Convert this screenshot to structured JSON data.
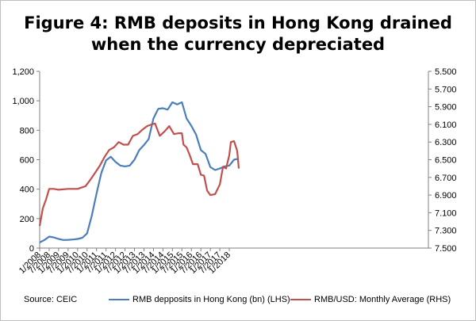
{
  "chart_data": {
    "type": "line",
    "title": "Figure 4: RMB deposits in Hong Kong drained when the currency depreciated",
    "title_lines": [
      "Figure 4: RMB deposits in Hong Kong drained",
      "when the currency depreciated"
    ],
    "source": "Source: CEIC",
    "x_tick_labels": [
      "1/2008",
      "7/2008",
      "1/2009",
      "7/2009",
      "1/2010",
      "7/2010",
      "1/2011",
      "7/2011",
      "1/2012",
      "7/2012",
      "1/2013",
      "7/2013",
      "1/2014",
      "7/2014",
      "1/2015",
      "7/2015",
      "1/2016",
      "7/2016",
      "1/2017",
      "7/2017",
      "1/2018"
    ],
    "y_left": {
      "ticks": [
        "0",
        "200",
        "400",
        "600",
        "800",
        "1,000",
        "1,200"
      ],
      "ylim": [
        0,
        1200
      ]
    },
    "y_right": {
      "ticks": [
        "5.500",
        "5.700",
        "5.900",
        "6.100",
        "6.300",
        "6.500",
        "6.700",
        "6.900",
        "7.100",
        "7.300",
        "7.500"
      ],
      "ylim": [
        7.5,
        5.5
      ],
      "inverted": true
    },
    "grid": false,
    "legend_position": "bottom",
    "series": [
      {
        "name": "RMB depposits in Hong Kong (bn) (LHS)",
        "axis": "left",
        "color": "#4a7ebb",
        "points": [
          [
            "2008-01",
            38
          ],
          [
            "2008-04",
            55
          ],
          [
            "2008-07",
            78
          ],
          [
            "2008-10",
            72
          ],
          [
            "2009-01",
            62
          ],
          [
            "2009-04",
            55
          ],
          [
            "2009-07",
            56
          ],
          [
            "2009-10",
            58
          ],
          [
            "2010-01",
            62
          ],
          [
            "2010-04",
            70
          ],
          [
            "2010-07",
            100
          ],
          [
            "2010-10",
            220
          ],
          [
            "2011-01",
            370
          ],
          [
            "2011-04",
            510
          ],
          [
            "2011-07",
            595
          ],
          [
            "2011-10",
            620
          ],
          [
            "2012-01",
            585
          ],
          [
            "2012-04",
            560
          ],
          [
            "2012-07",
            555
          ],
          [
            "2012-10",
            560
          ],
          [
            "2013-01",
            600
          ],
          [
            "2013-04",
            665
          ],
          [
            "2013-07",
            700
          ],
          [
            "2013-10",
            740
          ],
          [
            "2014-01",
            880
          ],
          [
            "2014-04",
            945
          ],
          [
            "2014-07",
            950
          ],
          [
            "2014-10",
            940
          ],
          [
            "2015-01",
            990
          ],
          [
            "2015-04",
            975
          ],
          [
            "2015-07",
            990
          ],
          [
            "2015-10",
            880
          ],
          [
            "2016-01",
            830
          ],
          [
            "2016-04",
            770
          ],
          [
            "2016-07",
            665
          ],
          [
            "2016-10",
            640
          ],
          [
            "2017-01",
            550
          ],
          [
            "2017-04",
            530
          ],
          [
            "2017-07",
            540
          ],
          [
            "2017-10",
            555
          ],
          [
            "2018-01",
            560
          ],
          [
            "2018-04",
            600
          ],
          [
            "2018-06",
            605
          ]
        ]
      },
      {
        "name": "RMB/USD: Monthly Average (RHS)",
        "axis": "right",
        "color": "#c0504d",
        "points": [
          [
            "2008-01",
            7.25
          ],
          [
            "2008-03",
            7.05
          ],
          [
            "2008-05",
            6.95
          ],
          [
            "2008-07",
            6.83
          ],
          [
            "2008-10",
            6.83
          ],
          [
            "2009-01",
            6.84
          ],
          [
            "2009-07",
            6.83
          ],
          [
            "2010-01",
            6.83
          ],
          [
            "2010-06",
            6.8
          ],
          [
            "2010-09",
            6.73
          ],
          [
            "2010-12",
            6.65
          ],
          [
            "2011-03",
            6.57
          ],
          [
            "2011-06",
            6.47
          ],
          [
            "2011-09",
            6.39
          ],
          [
            "2011-12",
            6.36
          ],
          [
            "2012-03",
            6.3
          ],
          [
            "2012-06",
            6.33
          ],
          [
            "2012-09",
            6.33
          ],
          [
            "2012-12",
            6.23
          ],
          [
            "2013-03",
            6.21
          ],
          [
            "2013-06",
            6.16
          ],
          [
            "2013-09",
            6.12
          ],
          [
            "2013-12",
            6.1
          ],
          [
            "2014-02",
            6.09
          ],
          [
            "2014-05",
            6.23
          ],
          [
            "2014-08",
            6.18
          ],
          [
            "2014-11",
            6.12
          ],
          [
            "2015-02",
            6.21
          ],
          [
            "2015-05",
            6.2
          ],
          [
            "2015-07",
            6.2
          ],
          [
            "2015-08",
            6.33
          ],
          [
            "2015-10",
            6.36
          ],
          [
            "2015-12",
            6.45
          ],
          [
            "2016-02",
            6.55
          ],
          [
            "2016-05",
            6.55
          ],
          [
            "2016-07",
            6.67
          ],
          [
            "2016-09",
            6.68
          ],
          [
            "2016-11",
            6.85
          ],
          [
            "2017-01",
            6.9
          ],
          [
            "2017-04",
            6.89
          ],
          [
            "2017-07",
            6.78
          ],
          [
            "2017-09",
            6.58
          ],
          [
            "2017-11",
            6.6
          ],
          [
            "2018-01",
            6.45
          ],
          [
            "2018-02",
            6.3
          ],
          [
            "2018-04",
            6.29
          ],
          [
            "2018-06",
            6.4
          ],
          [
            "2018-07",
            6.6
          ]
        ]
      }
    ]
  }
}
